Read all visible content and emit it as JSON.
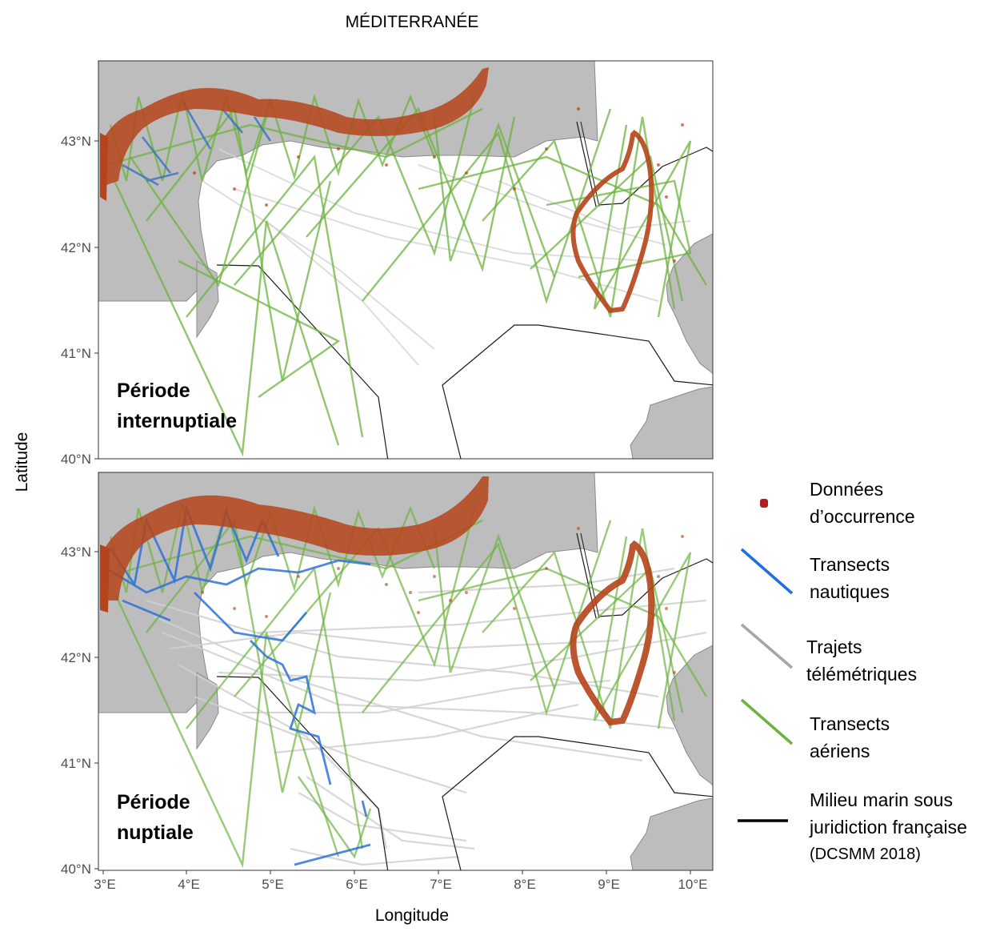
{
  "title": "MÉDITERRANÉE",
  "axes": {
    "xlabel": "Longitude",
    "ylabel": "Latitude",
    "x_ticks": [
      "3°E",
      "4°E",
      "5°E",
      "6°E",
      "7°E",
      "8°E",
      "9°E",
      "10°E"
    ],
    "y_ticks": [
      "40°N",
      "41°N",
      "42°N",
      "43°N"
    ]
  },
  "panels": [
    {
      "label_line1": "Période",
      "label_line2": "internuptiale"
    },
    {
      "label_line1": "Période",
      "label_line2": "nuptiale"
    }
  ],
  "legend": {
    "occurrence": {
      "line1": "Données",
      "line2": "d’occurrence",
      "color": "#b01e1e"
    },
    "nautical": {
      "line1": "Transects",
      "line2": "nautiques",
      "color": "#1f6fe0"
    },
    "telemetry": {
      "line1": "Trajets",
      "line2": "télémétriques",
      "color": "#a6a6a6"
    },
    "aerial": {
      "line1": "Transects",
      "line2": "aériens",
      "color": "#6cb33f"
    },
    "boundary": {
      "line1": "Milieu marin sous",
      "line2": "juridiction française",
      "line3": "(DCSMM 2018)",
      "color": "#000000"
    }
  },
  "colors": {
    "land": "#bdbdbd",
    "occurrence_points": "#b5441a",
    "aerial": "#6cb33f",
    "nautical": "#3a86e8",
    "telemetry": "#cfcfcf"
  }
}
